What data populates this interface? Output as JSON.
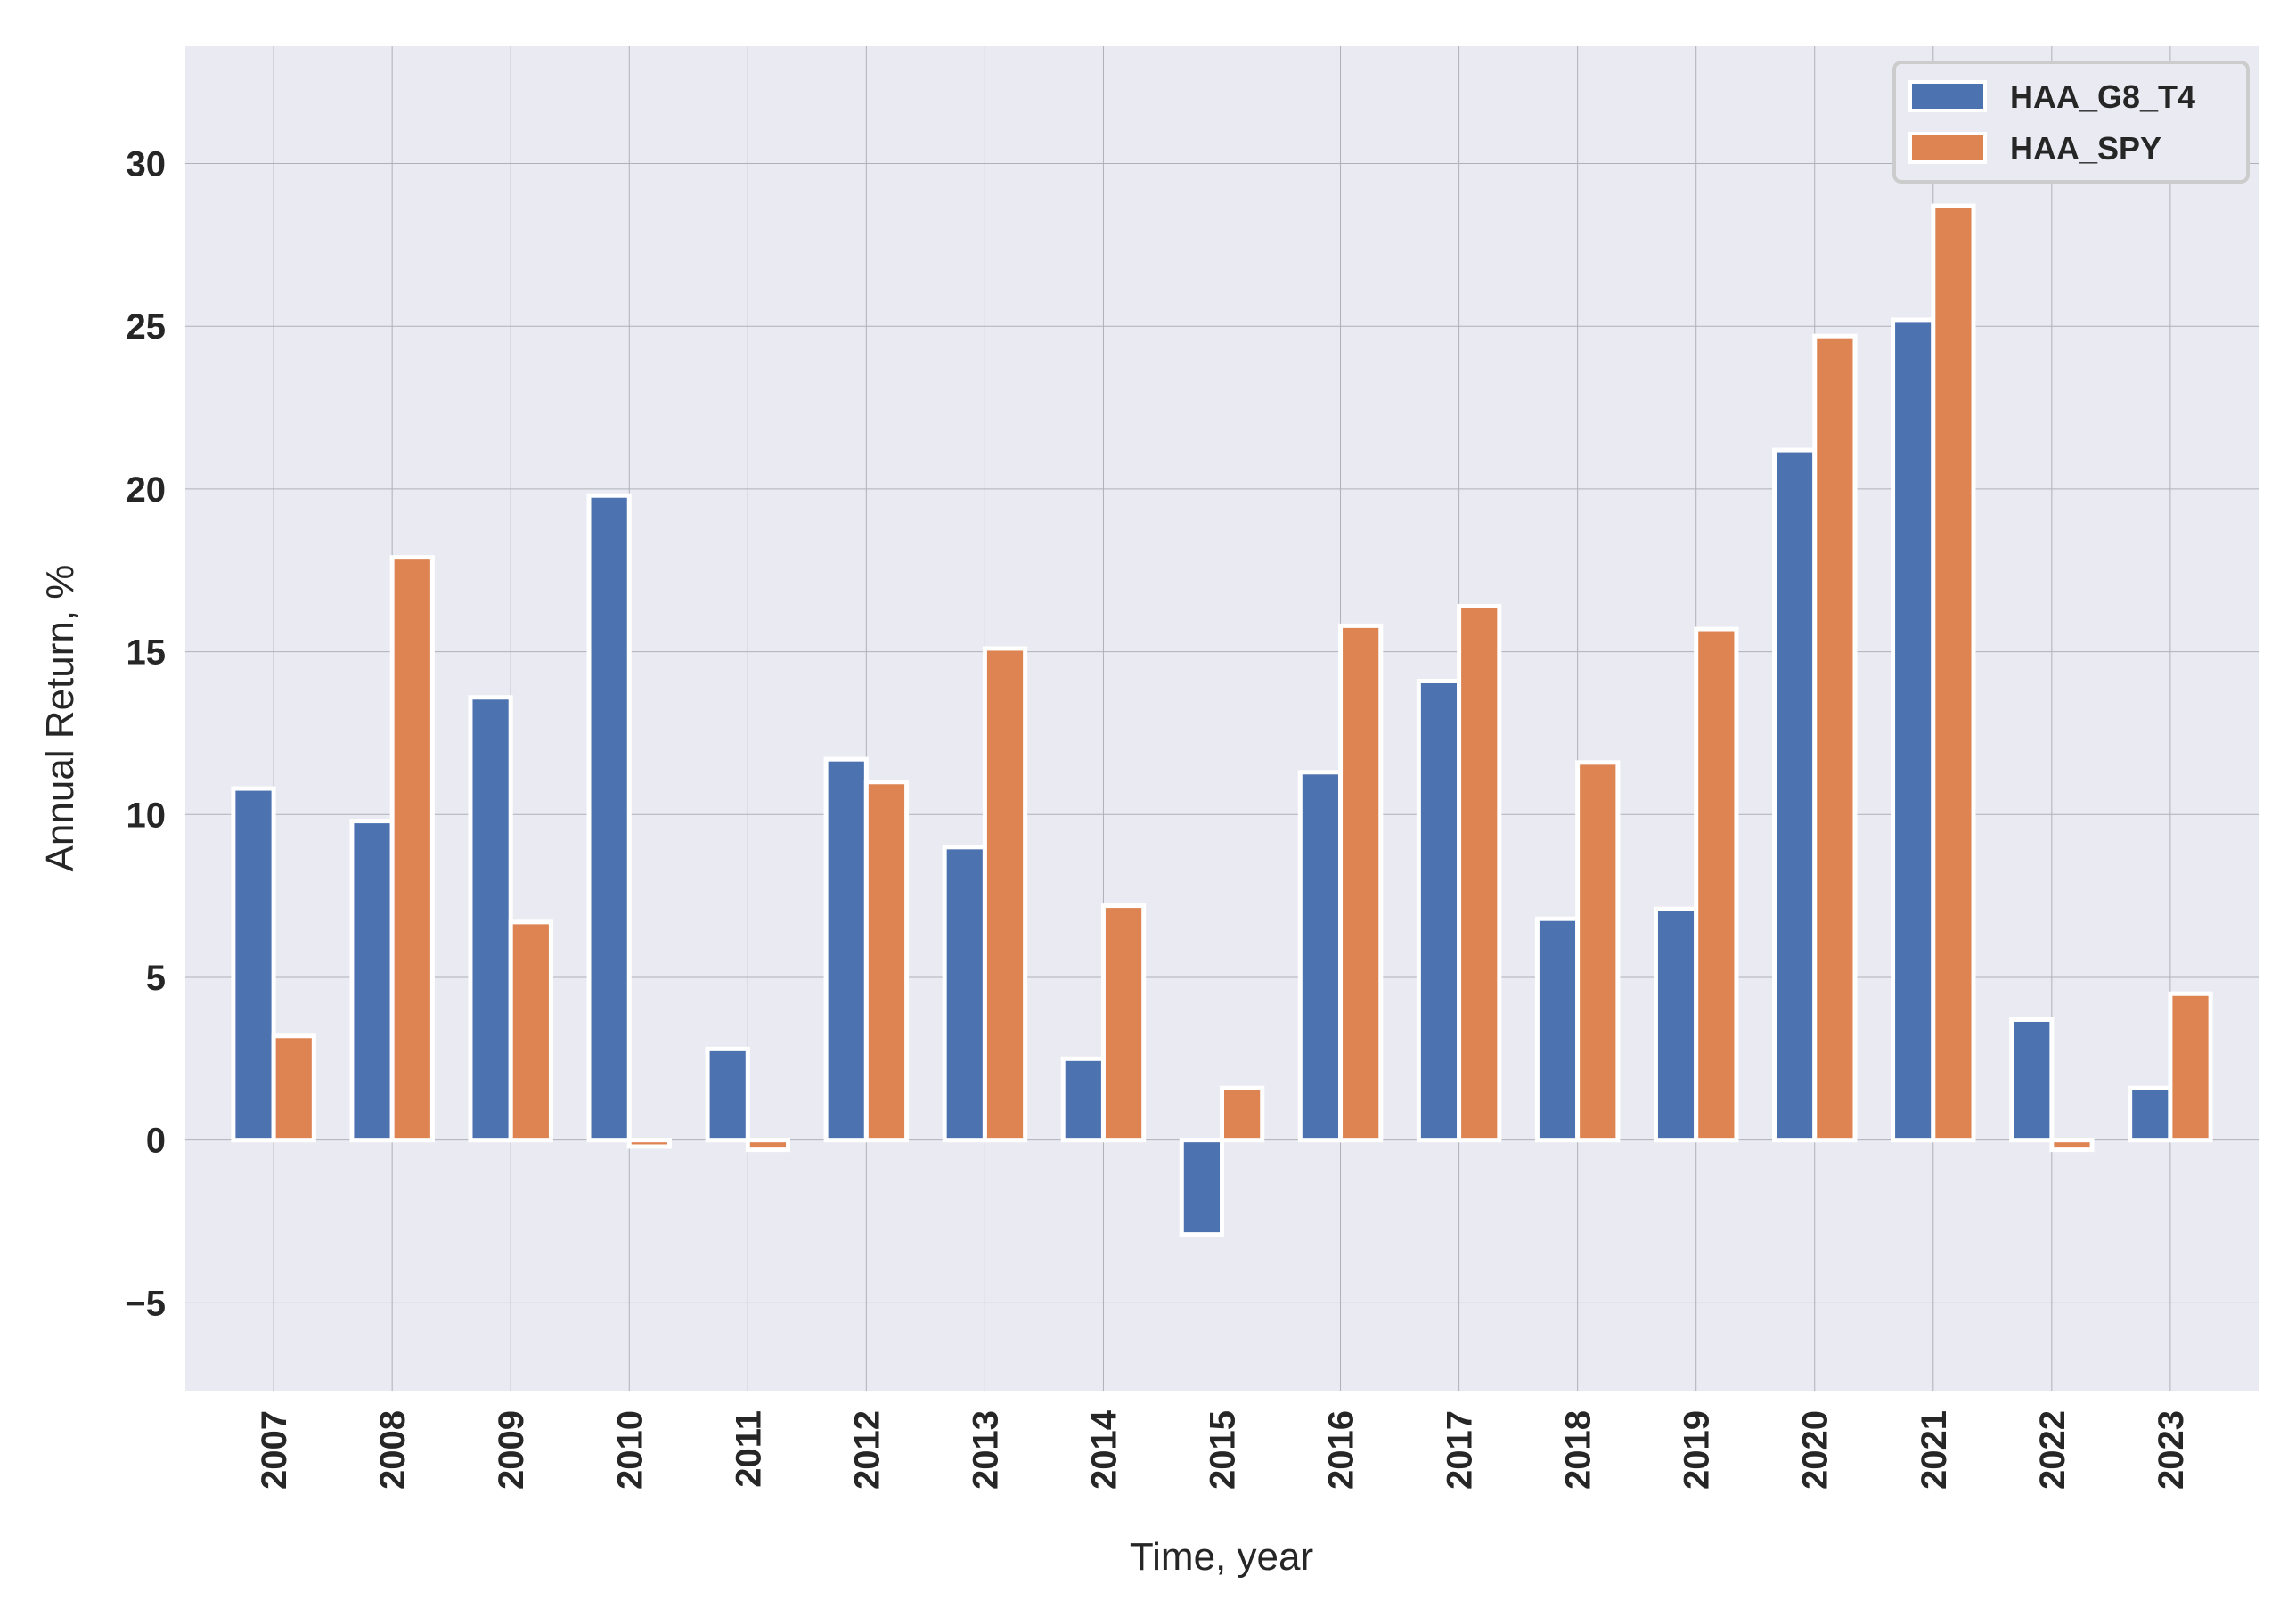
{
  "chart_data": {
    "type": "bar",
    "title": "",
    "xlabel": "Time, year",
    "ylabel": "Annual Return, %",
    "ylim": [
      -7.7,
      33.6
    ],
    "yticks": [
      -5,
      0,
      5,
      10,
      15,
      20,
      25,
      30
    ],
    "ytick_labels": [
      "−5",
      "0",
      "5",
      "10",
      "15",
      "20",
      "25",
      "30"
    ],
    "grid": true,
    "legend_position": "top-right",
    "categories": [
      "2007",
      "2008",
      "2009",
      "2010",
      "2011",
      "2012",
      "2013",
      "2014",
      "2015",
      "2016",
      "2017",
      "2018",
      "2019",
      "2020",
      "2021",
      "2022",
      "2023"
    ],
    "series": [
      {
        "name": "HAA_G8_T4",
        "color": "#4c72b0",
        "values": [
          10.8,
          9.8,
          13.6,
          19.8,
          2.8,
          11.7,
          9.0,
          2.5,
          -2.9,
          11.3,
          14.1,
          6.8,
          7.1,
          21.2,
          25.2,
          3.7,
          1.6
        ]
      },
      {
        "name": "HAA_SPY",
        "color": "#dd8452",
        "values": [
          3.2,
          17.9,
          6.7,
          -0.2,
          -0.3,
          11.0,
          15.1,
          7.2,
          1.6,
          15.8,
          16.4,
          11.6,
          15.7,
          24.7,
          28.7,
          -0.3,
          4.5
        ]
      }
    ]
  }
}
